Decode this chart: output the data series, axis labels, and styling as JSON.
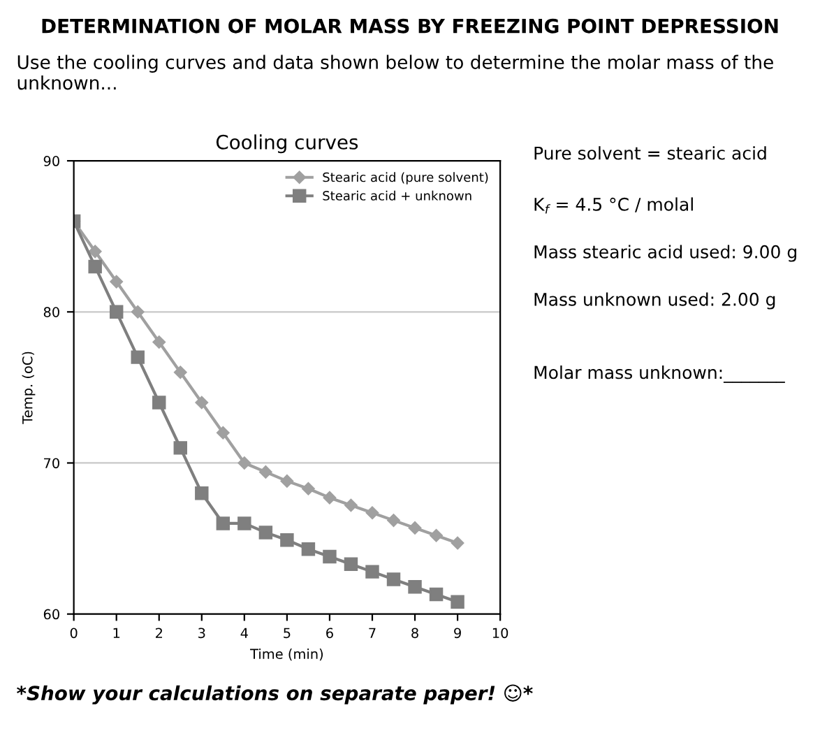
{
  "chart_data": {
    "type": "line",
    "title": "Cooling curves",
    "subtitle": "DETERMINATION OF MOLAR MASS BY FREEZING POINT DEPRESSION\nUse the cooling curves and data shown below to determine the molar mass of the unknown...",
    "xlabel": "Time (min)",
    "ylabel": "Temp. (oC)",
    "x": [
      0,
      0.5,
      1,
      1.5,
      2,
      2.5,
      3,
      3.5,
      4,
      4.5,
      5,
      5.5,
      6,
      6.5,
      7,
      7.5,
      8,
      8.5,
      9
    ],
    "series": [
      {
        "name": "Stearic acid (pure solvent)",
        "color": "#a0a0a0",
        "marker": "diamond",
        "values": [
          86,
          84,
          82,
          80,
          78,
          76,
          74,
          72,
          70,
          69.4,
          68.8,
          68.3,
          67.7,
          67.2,
          66.7,
          66.2,
          65.7,
          65.2,
          64.7
        ]
      },
      {
        "name": "Stearic acid + unknown",
        "color": "#7f7f7f",
        "marker": "square",
        "values": [
          86,
          83,
          80,
          77,
          74,
          71,
          68,
          66,
          66,
          65.4,
          64.9,
          64.3,
          63.8,
          63.3,
          62.8,
          62.3,
          61.8,
          61.3,
          60.8
        ]
      }
    ],
    "xlim": [
      0,
      10
    ],
    "ylim": [
      60,
      90
    ],
    "xticks": [
      0,
      1,
      2,
      3,
      4,
      5,
      6,
      7,
      8,
      9,
      10
    ],
    "yticks": [
      60,
      70,
      80,
      90
    ],
    "grid": "y",
    "legend": "top right",
    "line_style": "solid",
    "annotations": [
      "Pure solvent = stearic acid",
      "K$_{f}$ = 4.5 °C / molal",
      "Mass stearic acid used: 9.00 g",
      "Mass unknown used: 2.00 g",
      "Molar mass unknown:_______",
      "*Show your calculations on separate paper! ☺*"
    ]
  }
}
